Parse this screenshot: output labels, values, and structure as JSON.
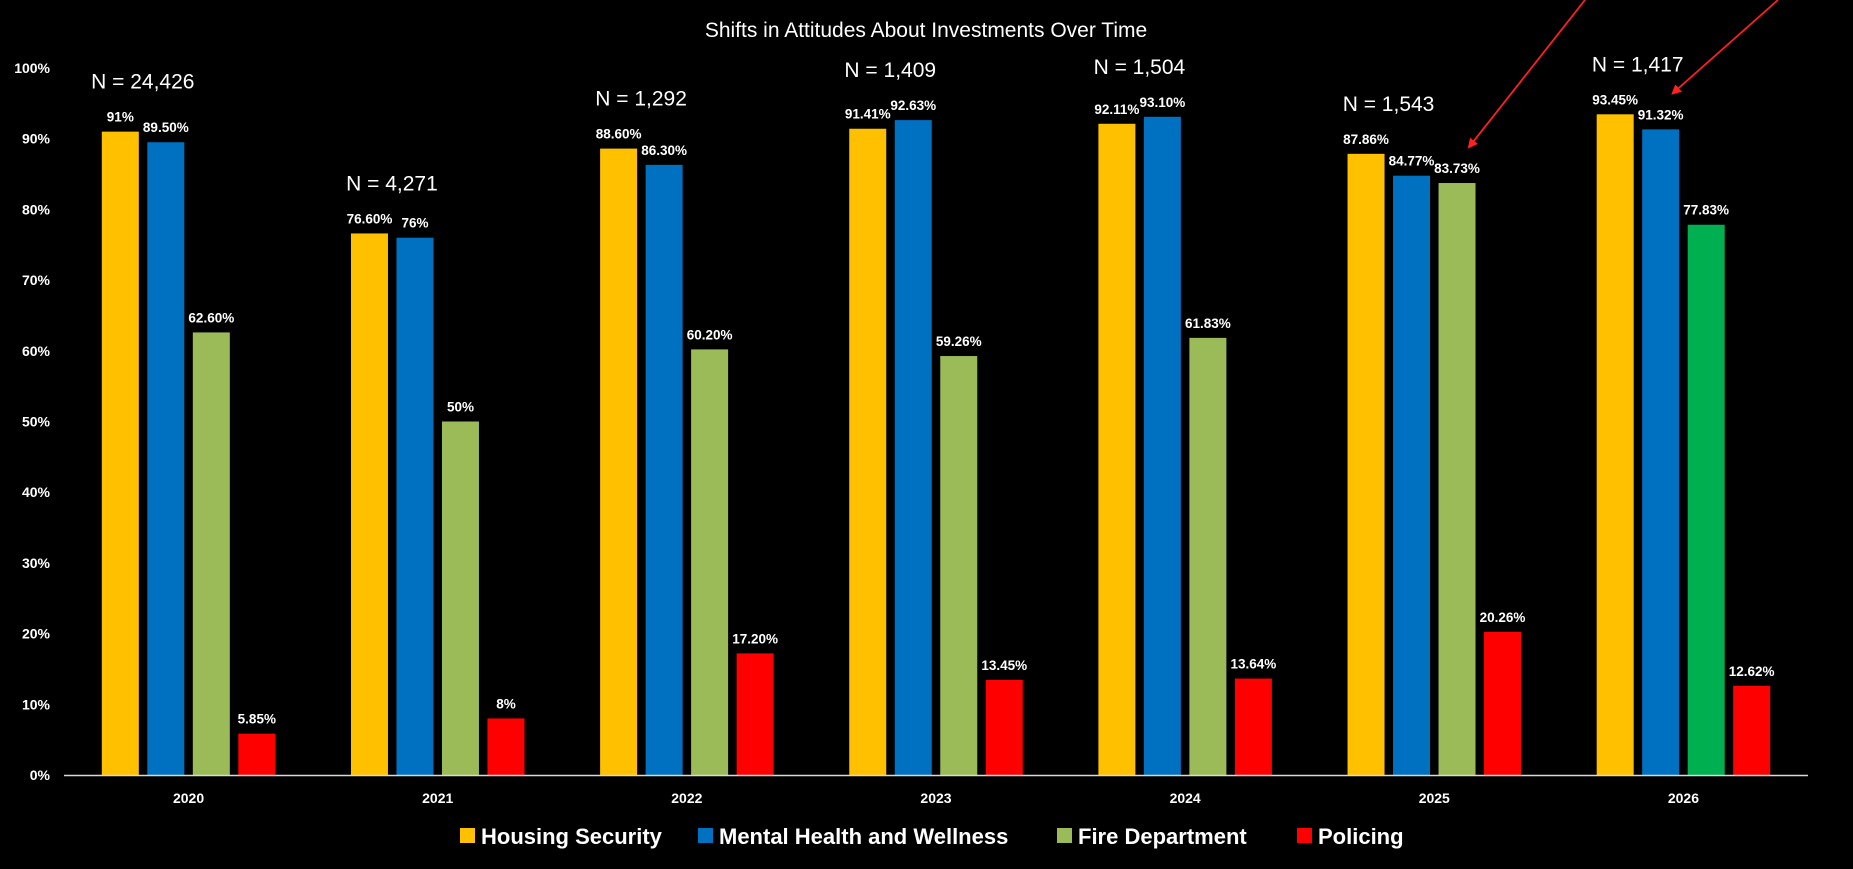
{
  "chart_data": {
    "type": "bar",
    "title": "Shifts in Attitudes About Investments Over Time",
    "xlabel": "",
    "ylabel": "",
    "ylim": [
      0,
      100
    ],
    "yticks": [
      "0%",
      "10%",
      "20%",
      "30%",
      "40%",
      "50%",
      "60%",
      "70%",
      "80%",
      "90%",
      "100%"
    ],
    "grid": false,
    "legend_position": "bottom",
    "categories": [
      "2020",
      "2021",
      "2022",
      "2023",
      "2024",
      "2025",
      "2026"
    ],
    "sample_sizes": [
      "N = 24,426",
      "N = 4,271",
      "N = 1,292",
      "N = 1,409",
      "N = 1,504",
      "N = 1,543",
      "N = 1,417"
    ],
    "series": [
      {
        "name": "Housing Security",
        "color": "#FFC000",
        "values": [
          91,
          76.6,
          88.6,
          91.41,
          92.11,
          87.86,
          93.45
        ],
        "labels": [
          "91%",
          "76.60%",
          "88.60%",
          "91.41%",
          "92.11%",
          "87.86%",
          "93.45%"
        ]
      },
      {
        "name": "Mental Health and Wellness",
        "color": "#0070C0",
        "values": [
          89.5,
          76,
          86.3,
          92.63,
          93.1,
          84.77,
          91.32
        ],
        "labels": [
          "89.50%",
          "76%",
          "86.30%",
          "92.63%",
          "93.10%",
          "84.77%",
          "91.32%"
        ]
      },
      {
        "name": "Fire Department",
        "color": "#9BBB59",
        "point_colors": [
          "#9BBB59",
          "#9BBB59",
          "#9BBB59",
          "#9BBB59",
          "#9BBB59",
          "#9BBB59",
          "#00B050"
        ],
        "values": [
          62.6,
          50,
          60.2,
          59.26,
          61.83,
          83.73,
          77.83
        ],
        "labels": [
          "62.60%",
          "50%",
          "60.20%",
          "59.26%",
          "61.83%",
          "83.73%",
          "77.83%"
        ]
      },
      {
        "name": "Policing",
        "color": "#FF0000",
        "values": [
          5.85,
          8,
          17.2,
          13.45,
          13.64,
          20.26,
          12.62
        ],
        "labels": [
          "5.85%",
          "8%",
          "17.20%",
          "13.45%",
          "13.64%",
          "20.26%",
          "12.62%"
        ]
      }
    ],
    "annotations": [
      {
        "type": "arrow",
        "color": "#FF2020",
        "points_to": {
          "category": "2025",
          "series": "Fire Department"
        }
      },
      {
        "type": "arrow",
        "color": "#FF2020",
        "points_to": {
          "category": "2026",
          "series": "Mental Health and Wellness"
        }
      }
    ]
  }
}
